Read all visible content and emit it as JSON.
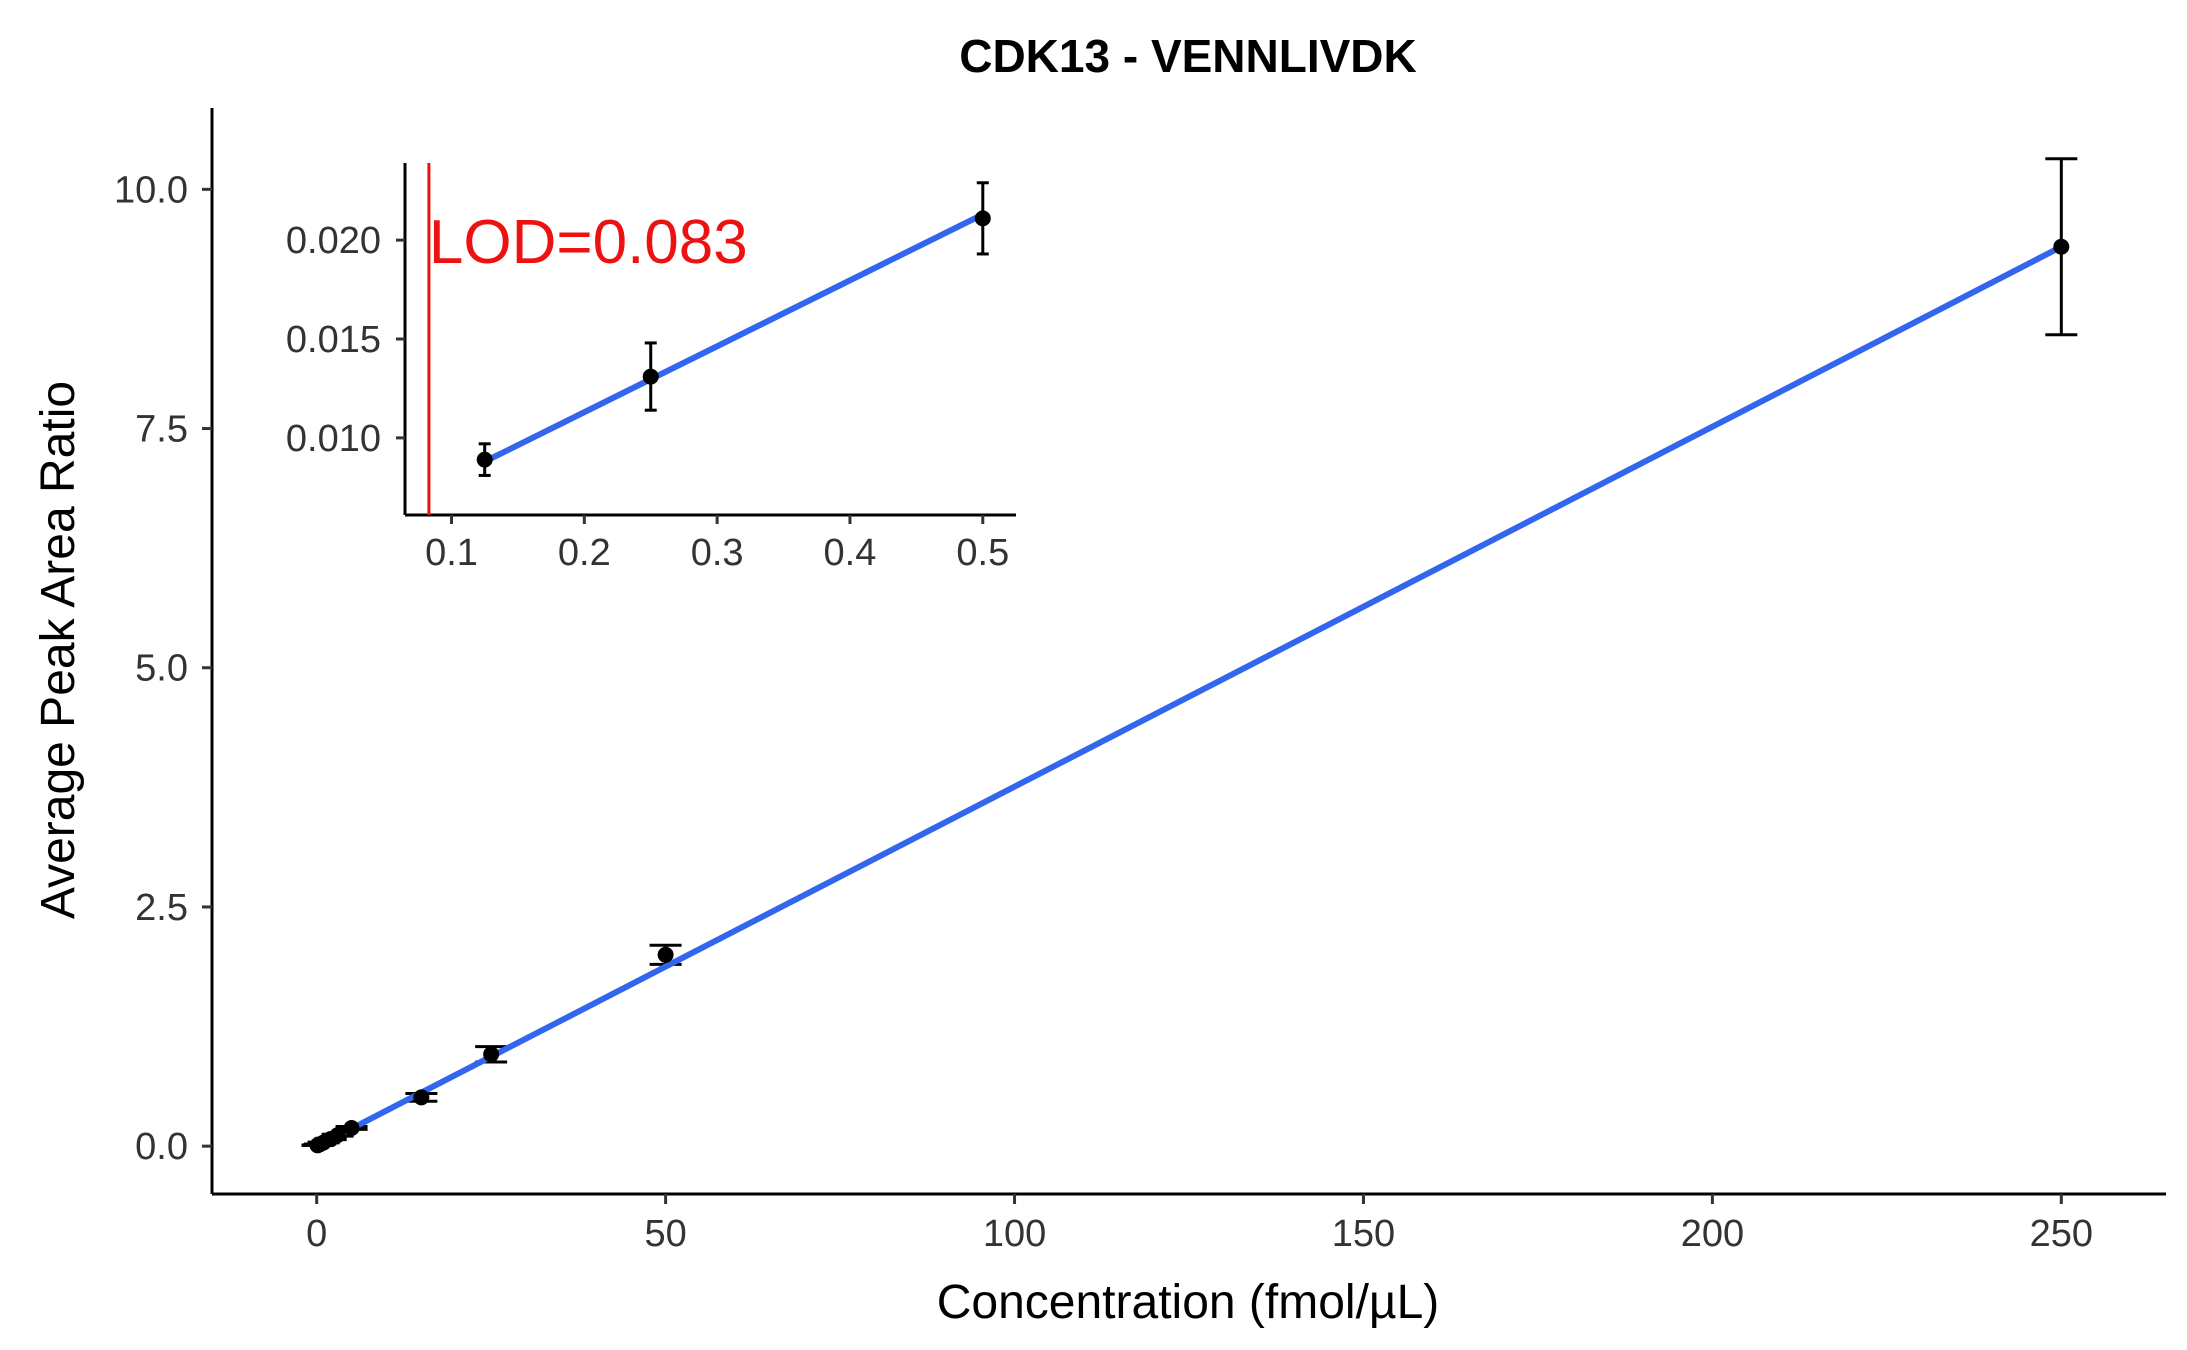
{
  "chart_data": {
    "type": "scatter",
    "title": "CDK13 - VENNLIVDK",
    "xlabel": "Concentration (fmol/µL)",
    "ylabel": "Average Peak Area Ratio",
    "xlim": [
      -15,
      265
    ],
    "ylim": [
      -0.5,
      10.85
    ],
    "x_ticks": [
      "0",
      "50",
      "100",
      "150",
      "200",
      "250"
    ],
    "y_ticks": [
      "0.0",
      "2.5",
      "5.0",
      "7.5",
      "10.0"
    ],
    "x_tick_values": [
      0,
      50,
      100,
      150,
      200,
      250
    ],
    "y_tick_values": [
      0,
      2.5,
      5.0,
      7.5,
      10.0
    ],
    "points": [
      {
        "x": 0.125,
        "y": 0.0089,
        "err": 0.0008
      },
      {
        "x": 0.25,
        "y": 0.0131,
        "err": 0.0017
      },
      {
        "x": 0.5,
        "y": 0.0211,
        "err": 0.0018
      },
      {
        "x": 1,
        "y": 0.038,
        "err": 0.004
      },
      {
        "x": 2,
        "y": 0.075,
        "err": 0.007
      },
      {
        "x": 3,
        "y": 0.115,
        "err": 0.01
      },
      {
        "x": 5,
        "y": 0.19,
        "err": 0.015
      },
      {
        "x": 15,
        "y": 0.51,
        "err": 0.04
      },
      {
        "x": 25,
        "y": 0.96,
        "err": 0.08
      },
      {
        "x": 50,
        "y": 2.0,
        "err": 0.1
      },
      {
        "x": 250,
        "y": 9.4,
        "err": 0.92
      }
    ],
    "fit_line": {
      "x": [
        0.125,
        250
      ],
      "y": [
        0.0,
        9.4
      ],
      "color": "#3366ee"
    },
    "inset": {
      "xlim": [
        0.065,
        0.525
      ],
      "ylim": [
        0.0061,
        0.0239
      ],
      "x_ticks": [
        "0.1",
        "0.2",
        "0.3",
        "0.4",
        "0.5"
      ],
      "y_ticks": [
        "0.010",
        "0.015",
        "0.020"
      ],
      "x_tick_values": [
        0.1,
        0.2,
        0.3,
        0.4,
        0.5
      ],
      "y_tick_values": [
        0.01,
        0.015,
        0.02
      ],
      "points": [
        {
          "x": 0.125,
          "y": 0.0089,
          "err": 0.0008
        },
        {
          "x": 0.25,
          "y": 0.0131,
          "err": 0.0017
        },
        {
          "x": 0.5,
          "y": 0.0211,
          "err": 0.0018
        }
      ],
      "fit_line": {
        "x": [
          0.125,
          0.5
        ],
        "y": [
          0.0088,
          0.0213
        ]
      },
      "lod": {
        "value": 0.083,
        "label": "LOD=0.083",
        "color": "#ee1111"
      }
    },
    "colors": {
      "points": "#000000",
      "fit": "#3366ee",
      "lod": "#ee1111"
    },
    "grid": false,
    "legend": "none"
  }
}
